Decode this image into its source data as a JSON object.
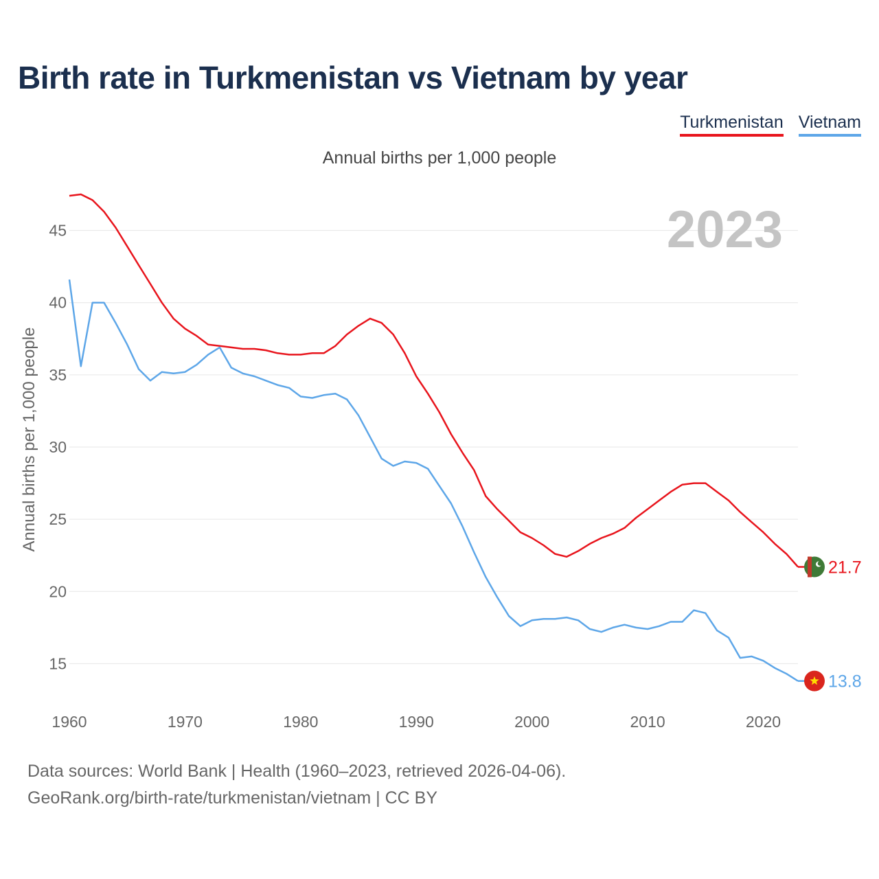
{
  "title": "Birth rate in Turkmenistan vs Vietnam by year",
  "legend": {
    "turkmenistan": "Turkmenistan",
    "vietnam": "Vietnam"
  },
  "subtitle": "Annual births per 1,000 people",
  "footer": {
    "line1": "Data sources: World Bank | Health (1960–2023, retrieved 2026-04-06).",
    "line2": "GeoRank.org/birth-rate/turkmenistan/vietnam | CC BY"
  },
  "colors": {
    "turkmenistan": "#e8141c",
    "vietnam": "#5da6e8",
    "title": "#1b2f4e"
  },
  "chart_data": {
    "type": "line",
    "title": "Birth rate in Turkmenistan vs Vietnam by year",
    "xlabel": "",
    "ylabel": "Annual births per 1,000 people",
    "year_label": "2023",
    "xlim": [
      1960,
      2023
    ],
    "ylim": [
      12.5,
      48.5
    ],
    "xticks": [
      1960,
      1970,
      1980,
      1990,
      2000,
      2010,
      2020
    ],
    "yticks": [
      15,
      20,
      25,
      30,
      35,
      40,
      45
    ],
    "x": [
      1960,
      1961,
      1962,
      1963,
      1964,
      1965,
      1966,
      1967,
      1968,
      1969,
      1970,
      1971,
      1972,
      1973,
      1974,
      1975,
      1976,
      1977,
      1978,
      1979,
      1980,
      1981,
      1982,
      1983,
      1984,
      1985,
      1986,
      1987,
      1988,
      1989,
      1990,
      1991,
      1992,
      1993,
      1994,
      1995,
      1996,
      1997,
      1998,
      1999,
      2000,
      2001,
      2002,
      2003,
      2004,
      2005,
      2006,
      2007,
      2008,
      2009,
      2010,
      2011,
      2012,
      2013,
      2014,
      2015,
      2016,
      2017,
      2018,
      2019,
      2020,
      2021,
      2022,
      2023
    ],
    "series": [
      {
        "name": "Turkmenistan",
        "color": "#e8141c",
        "end_label": "21.7",
        "values": [
          47.4,
          47.5,
          47.1,
          46.3,
          45.2,
          43.9,
          42.6,
          41.3,
          40.0,
          38.9,
          38.2,
          37.7,
          37.1,
          37.0,
          36.9,
          36.8,
          36.8,
          36.7,
          36.5,
          36.4,
          36.4,
          36.5,
          36.5,
          37.0,
          37.8,
          38.4,
          38.9,
          38.6,
          37.8,
          36.5,
          34.9,
          33.7,
          32.4,
          30.9,
          29.6,
          28.4,
          26.6,
          25.7,
          24.9,
          24.1,
          23.7,
          23.2,
          22.6,
          22.4,
          22.8,
          23.3,
          23.7,
          24.0,
          24.4,
          25.1,
          25.7,
          26.3,
          26.9,
          27.4,
          27.5,
          27.5,
          26.9,
          26.3,
          25.5,
          24.8,
          24.1,
          23.3,
          22.6,
          21.7
        ]
      },
      {
        "name": "Vietnam",
        "color": "#5da6e8",
        "end_label": "13.8",
        "values": [
          41.6,
          35.6,
          40.0,
          40.0,
          38.6,
          37.1,
          35.4,
          34.6,
          35.2,
          35.1,
          35.2,
          35.7,
          36.4,
          36.9,
          35.5,
          35.1,
          34.9,
          34.6,
          34.3,
          34.1,
          33.5,
          33.4,
          33.6,
          33.7,
          33.3,
          32.2,
          30.7,
          29.2,
          28.7,
          29.0,
          28.9,
          28.5,
          27.3,
          26.1,
          24.5,
          22.7,
          21.0,
          19.6,
          18.3,
          17.6,
          18.0,
          18.1,
          18.1,
          18.2,
          18.0,
          17.4,
          17.2,
          17.5,
          17.7,
          17.5,
          17.4,
          17.6,
          17.9,
          17.9,
          18.7,
          18.5,
          17.3,
          16.8,
          15.4,
          15.5,
          15.2,
          14.7,
          14.3,
          13.8
        ]
      }
    ]
  }
}
